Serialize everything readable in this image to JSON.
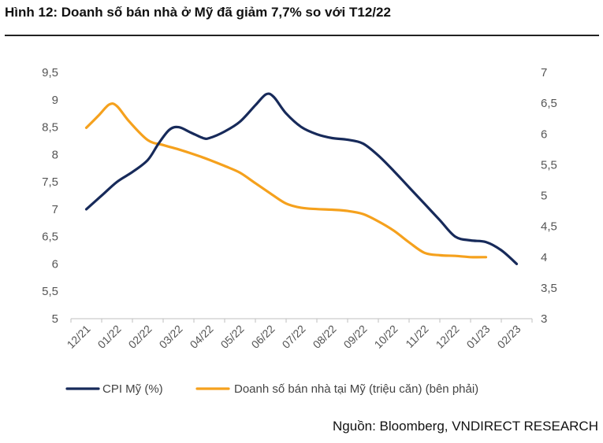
{
  "title": "Hình 12: Doanh số bán nhà ở Mỹ đã giảm 7,7% so với T12/22",
  "source": "Nguồn: Bloomberg, VNDIRECT RESEARCH",
  "chart_data": {
    "type": "line",
    "categories": [
      "12/21",
      "01/22",
      "02/22",
      "03/22",
      "04/22",
      "05/22",
      "06/22",
      "07/22",
      "08/22",
      "09/22",
      "10/22",
      "11/22",
      "12/22",
      "01/23",
      "02/23"
    ],
    "left_ticks": [
      "5",
      "5,5",
      "6",
      "6,5",
      "7",
      "7,5",
      "8",
      "8,5",
      "9",
      "9,5"
    ],
    "right_ticks": [
      "3",
      "3,5",
      "4",
      "4,5",
      "5",
      "5,5",
      "6",
      "6,5",
      "7"
    ],
    "ylim_left": [
      5,
      9.5
    ],
    "ylim_right": [
      3,
      7
    ],
    "grid": false,
    "legend_position": "bottom",
    "series": [
      {
        "name": "CPI Mỹ (%)",
        "axis": "left",
        "color": "#172a5a",
        "points": [
          [
            0,
            7.0
          ],
          [
            0.5,
            7.25
          ],
          [
            1,
            7.5
          ],
          [
            1.5,
            7.68
          ],
          [
            2,
            7.9
          ],
          [
            2.35,
            8.2
          ],
          [
            2.7,
            8.45
          ],
          [
            3,
            8.5
          ],
          [
            3.4,
            8.4
          ],
          [
            3.8,
            8.3
          ],
          [
            4,
            8.3
          ],
          [
            4.5,
            8.42
          ],
          [
            5,
            8.6
          ],
          [
            5.5,
            8.9
          ],
          [
            5.85,
            9.1
          ],
          [
            6.1,
            9.05
          ],
          [
            6.5,
            8.75
          ],
          [
            7,
            8.5
          ],
          [
            7.5,
            8.37
          ],
          [
            8,
            8.3
          ],
          [
            8.5,
            8.27
          ],
          [
            9,
            8.2
          ],
          [
            9.5,
            7.98
          ],
          [
            10,
            7.7
          ],
          [
            10.5,
            7.4
          ],
          [
            11,
            7.1
          ],
          [
            11.5,
            6.8
          ],
          [
            12,
            6.5
          ],
          [
            12.5,
            6.43
          ],
          [
            13,
            6.4
          ],
          [
            13.5,
            6.25
          ],
          [
            14,
            6.0
          ]
        ]
      },
      {
        "name": "Doanh số bán nhà tại Mỹ (triệu căn) (bên phải)",
        "axis": "right",
        "color": "#f5a11d",
        "points": [
          [
            0,
            6.1
          ],
          [
            0.4,
            6.3
          ],
          [
            0.75,
            6.48
          ],
          [
            1,
            6.45
          ],
          [
            1.4,
            6.2
          ],
          [
            2,
            5.9
          ],
          [
            2.5,
            5.82
          ],
          [
            3,
            5.75
          ],
          [
            3.5,
            5.67
          ],
          [
            4,
            5.58
          ],
          [
            4.5,
            5.48
          ],
          [
            5,
            5.37
          ],
          [
            5.5,
            5.2
          ],
          [
            6,
            5.03
          ],
          [
            6.5,
            4.87
          ],
          [
            7,
            4.8
          ],
          [
            7.5,
            4.78
          ],
          [
            8,
            4.77
          ],
          [
            8.5,
            4.75
          ],
          [
            9,
            4.7
          ],
          [
            9.5,
            4.58
          ],
          [
            10,
            4.43
          ],
          [
            10.5,
            4.24
          ],
          [
            11,
            4.07
          ],
          [
            11.5,
            4.03
          ],
          [
            12,
            4.02
          ],
          [
            12.5,
            4.0
          ],
          [
            13,
            4.0
          ]
        ]
      }
    ]
  }
}
